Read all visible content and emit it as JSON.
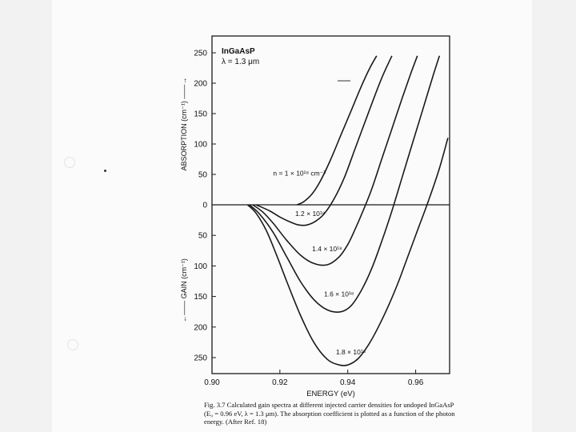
{
  "caption": {
    "lines": [
      "Fig. 3.7 Calculated gain spectra at different injected carrier densities for undoped InGaAsP",
      "(E₉ = 0.96 eV, λ = 1.3 μm). The absorption coefficient is plotted as a function of the photon",
      "energy. (After Ref. 18)"
    ]
  },
  "chart_data": {
    "type": "line",
    "title": "InGaAsP",
    "subtitle": "λ = 1.3 μm",
    "xlabel": "ENERGY (eV)",
    "ylabel_top": "ABSORPTION (cm⁻¹) ——→",
    "ylabel_bottom": "←—— GAIN (cm⁻¹)",
    "xlim": [
      0.9,
      0.97
    ],
    "ylim": [
      -270,
      250
    ],
    "x_ticks": [
      {
        "value": 0.9,
        "label": "0.90"
      },
      {
        "value": 0.92,
        "label": "0.92"
      },
      {
        "value": 0.94,
        "label": "0.94"
      },
      {
        "value": 0.96,
        "label": "0.96"
      }
    ],
    "y_ticks": [
      {
        "value": 250,
        "label": "250"
      },
      {
        "value": 200,
        "label": "200"
      },
      {
        "value": 150,
        "label": "150"
      },
      {
        "value": 100,
        "label": "100"
      },
      {
        "value": 50,
        "label": "50"
      },
      {
        "value": 0,
        "label": "0"
      },
      {
        "value": -50,
        "label": "50"
      },
      {
        "value": -100,
        "label": "100"
      },
      {
        "value": -150,
        "label": "150"
      },
      {
        "value": -200,
        "label": "200"
      },
      {
        "value": -250,
        "label": "250"
      }
    ],
    "grid": false,
    "zero_line": true,
    "series": [
      {
        "name": "n = 1 × 10¹⁸ cm⁻³",
        "x": [
          0.925,
          0.927,
          0.9295,
          0.932,
          0.935,
          0.938,
          0.941,
          0.944,
          0.9465,
          0.9485
        ],
        "y": [
          0,
          5,
          18,
          40,
          75,
          115,
          155,
          195,
          225,
          245
        ]
      },
      {
        "name": "1.2 × 10¹⁸",
        "x": [
          0.913,
          0.917,
          0.92,
          0.923,
          0.9255,
          0.928,
          0.9305,
          0.933,
          0.936,
          0.939,
          0.942,
          0.945,
          0.948,
          0.9505,
          0.953
        ],
        "y": [
          0,
          -10,
          -20,
          -28,
          -33,
          -33,
          -27,
          -15,
          10,
          45,
          90,
          135,
          180,
          215,
          245
        ]
      },
      {
        "name": "1.4 × 10¹⁸",
        "x": [
          0.912,
          0.915,
          0.918,
          0.922,
          0.926,
          0.93,
          0.934,
          0.9375,
          0.94,
          0.942,
          0.9445,
          0.947,
          0.95,
          0.953,
          0.956,
          0.9585,
          0.9605
        ],
        "y": [
          0,
          -12,
          -30,
          -58,
          -82,
          -96,
          -98,
          -85,
          -65,
          -42,
          -10,
          25,
          75,
          125,
          175,
          215,
          245
        ]
      },
      {
        "name": "1.6 × 10¹⁸",
        "x": [
          0.911,
          0.914,
          0.918,
          0.922,
          0.926,
          0.93,
          0.934,
          0.938,
          0.941,
          0.944,
          0.947,
          0.95,
          0.953,
          0.956,
          0.959,
          0.962,
          0.965,
          0.967
        ],
        "y": [
          0,
          -15,
          -45,
          -85,
          -125,
          -155,
          -172,
          -175,
          -165,
          -140,
          -105,
          -60,
          -10,
          45,
          100,
          155,
          210,
          245
        ]
      },
      {
        "name": "1.8 × 10¹⁸",
        "x": [
          0.9105,
          0.913,
          0.916,
          0.919,
          0.922,
          0.926,
          0.93,
          0.934,
          0.9375,
          0.94,
          0.943,
          0.946,
          0.949,
          0.952,
          0.955,
          0.958,
          0.961,
          0.964,
          0.967,
          0.9695
        ],
        "y": [
          0,
          -14,
          -42,
          -82,
          -125,
          -180,
          -225,
          -253,
          -262,
          -262,
          -252,
          -230,
          -200,
          -165,
          -125,
          -80,
          -35,
          10,
          60,
          110
        ]
      }
    ],
    "annotations": [
      {
        "text": "n = 1 × 10¹⁸ cm⁻³",
        "series": 0,
        "x": 0.918,
        "y": 48
      },
      {
        "text": "1.2 × 10¹⁸",
        "series": 1,
        "x": 0.9245,
        "y": -18
      },
      {
        "text": "1.4 × 10¹⁸",
        "series": 2,
        "x": 0.9295,
        "y": -76
      },
      {
        "text": "1.6 × 10¹⁸",
        "series": 3,
        "x": 0.933,
        "y": -150
      },
      {
        "text": "1.8 × 10¹⁸",
        "series": 4,
        "x": 0.9365,
        "y": -245
      }
    ],
    "line_color": "#1a1a1a"
  }
}
